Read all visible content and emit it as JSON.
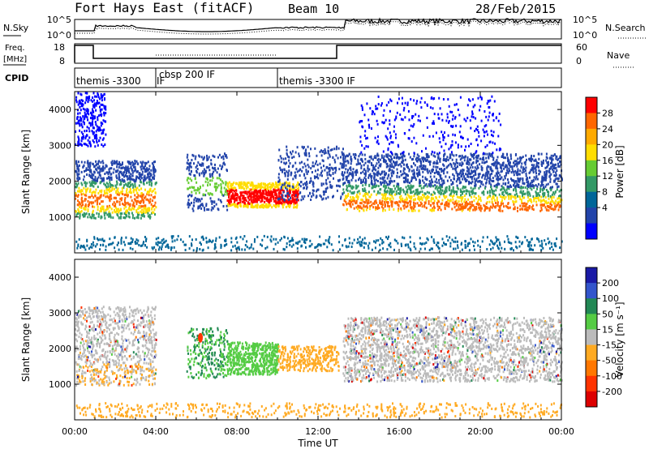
{
  "header": {
    "title": "Fort Hays East (fitACF)",
    "beam": "Beam 10",
    "date": "28/Feb/2015"
  },
  "noise_panel": {
    "left_label": "N.Sky",
    "right_label": "N.Search",
    "ticks": [
      "10^5",
      "10^0"
    ]
  },
  "freq_panel": {
    "left_label_1": "Freq.",
    "left_label_2": "[MHz]",
    "right_label": "Nave",
    "left_ticks": [
      "18",
      "8"
    ],
    "right_ticks": [
      "60",
      "0"
    ]
  },
  "cpid_panel": {
    "label": "CPID",
    "segments": [
      {
        "label": "themis -3300",
        "start": 0.0
      },
      {
        "label": "IF",
        "start": 3.96
      },
      {
        "label": "cbsp 200 IF",
        "start": 4.3
      },
      {
        "label": "themis -3300 IF",
        "start": 10.0
      }
    ]
  },
  "chart_data": [
    {
      "type": "heatmap",
      "name": "power",
      "ylabel": "Slant Range [km]",
      "xlabel": "",
      "ylim": [
        0,
        4500
      ],
      "yticks": [
        "1000",
        "2000",
        "3000",
        "4000"
      ],
      "colorbar_label": "Power [dB]",
      "colorbar_ticks": [
        "28",
        "24",
        "20",
        "16",
        "12",
        "8",
        "4"
      ],
      "colors": [
        "#ff0000",
        "#ff6600",
        "#ffaa00",
        "#ffdd00",
        "#66cc33",
        "#339966",
        "#006699",
        "#2244aa",
        "#0000ff"
      ]
    },
    {
      "type": "heatmap",
      "name": "velocity",
      "ylabel": "Slant Range [km]",
      "xlabel": "Time UT",
      "ylim": [
        0,
        4500
      ],
      "yticks": [
        "1000",
        "2000",
        "3000",
        "4000"
      ],
      "xticks": [
        "00:00",
        "04:00",
        "08:00",
        "12:00",
        "16:00",
        "20:00",
        "00:00"
      ],
      "colorbar_label": "Velocity [m s⁻¹]",
      "colorbar_ticks": [
        "200",
        "100",
        "50",
        "15",
        "-15",
        "-50",
        "-100",
        "-200"
      ],
      "colors": [
        "#1a1aa6",
        "#3355cc",
        "#228855",
        "#55cc44",
        "#bbbbbb",
        "#ffaa22",
        "#ff7700",
        "#ff3300",
        "#dd0000"
      ]
    }
  ]
}
